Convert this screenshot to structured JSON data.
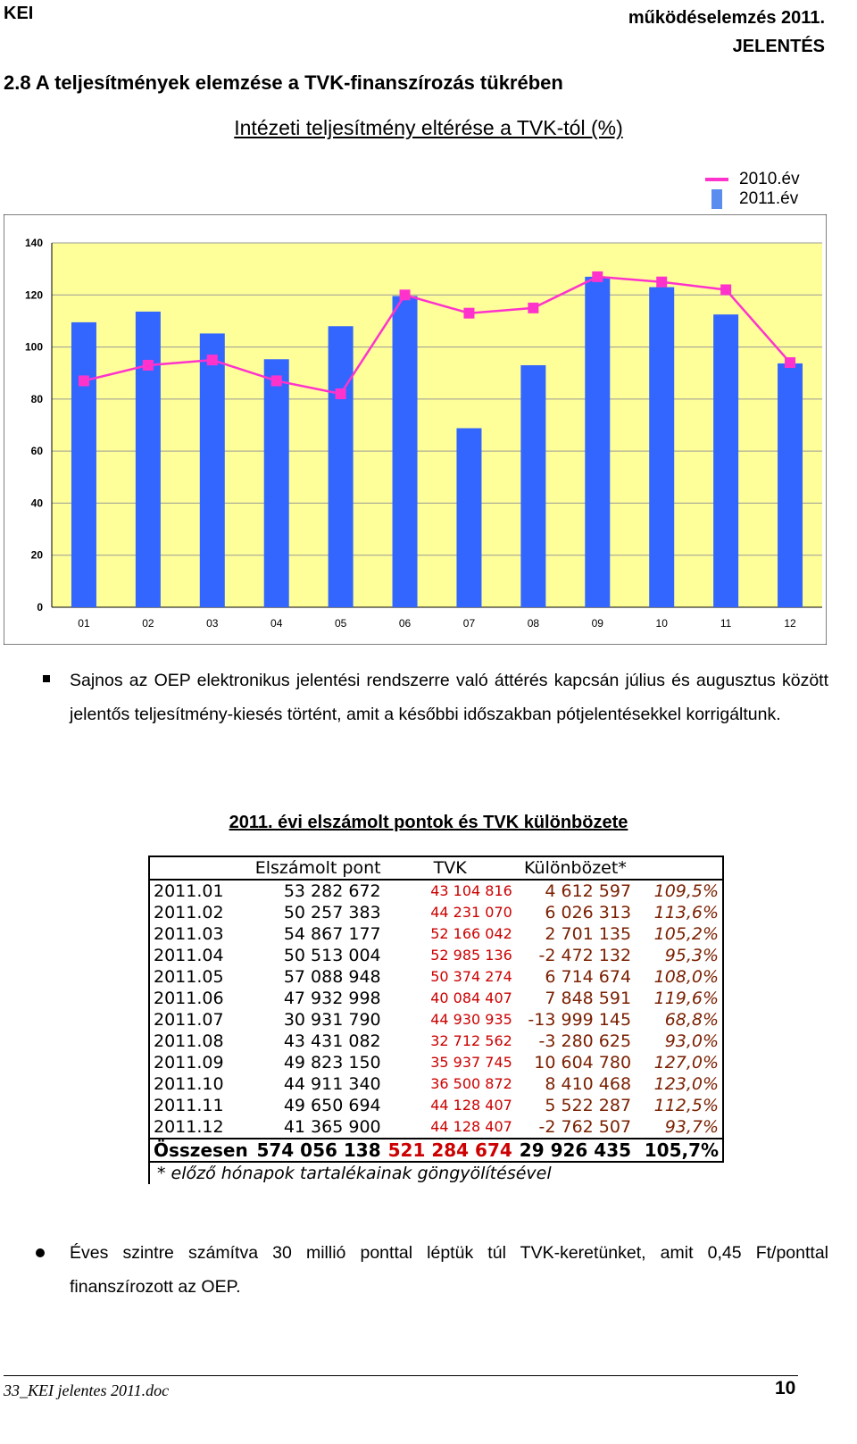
{
  "header": {
    "left": "KEI",
    "right_line1": "működéselemzés 2011.",
    "right_line2": "JELENTÉS"
  },
  "section_title": "2.8 A teljesítmények elemzése a TVK-finanszírozás tükrében",
  "chart_data": {
    "type": "bar",
    "title": "Intézeti teljesítmény eltérése a TVK-tól (%)",
    "categories": [
      "01",
      "02",
      "03",
      "04",
      "05",
      "06",
      "07",
      "08",
      "09",
      "10",
      "11",
      "12"
    ],
    "series": [
      {
        "name": "2010.év",
        "kind": "line",
        "color": "#ff33cc",
        "values": [
          87,
          93,
          95,
          87,
          82,
          120,
          113,
          115,
          127,
          125,
          122,
          94
        ]
      },
      {
        "name": "2011.év",
        "kind": "bar",
        "color": "#3366ff",
        "values": [
          109.5,
          113.6,
          105.2,
          95.3,
          108.0,
          119.6,
          68.8,
          93.0,
          127.0,
          123.0,
          112.5,
          93.7
        ]
      }
    ],
    "ylim": [
      0,
      140
    ],
    "yticks": [
      0,
      20,
      40,
      60,
      80,
      100,
      120,
      140
    ],
    "grid": true,
    "legend": "top-right",
    "plot_background": "#ffff99"
  },
  "paragraph1": "Sajnos az OEP elektronikus jelentési rendszerre való áttérés kapcsán július és augusztus között jelentős teljesítmény-kiesés történt, amit a későbbi időszakban pótjelentésekkel korrigáltunk.",
  "table": {
    "title": "2011. évi elszámolt pontok és TVK különbözete",
    "headers": [
      "",
      "Elszámolt pont",
      "TVK",
      "Különbözet*",
      ""
    ],
    "rows": [
      [
        "2011.01",
        "53 282 672",
        "43 104 816",
        "4 612 597",
        "109,5%"
      ],
      [
        "2011.02",
        "50 257 383",
        "44 231 070",
        "6 026 313",
        "113,6%"
      ],
      [
        "2011.03",
        "54 867 177",
        "52 166 042",
        "2 701 135",
        "105,2%"
      ],
      [
        "2011.04",
        "50 513 004",
        "52 985 136",
        "-2 472 132",
        "95,3%"
      ],
      [
        "2011.05",
        "57 088 948",
        "50 374 274",
        "6 714 674",
        "108,0%"
      ],
      [
        "2011.06",
        "47 932 998",
        "40 084 407",
        "7 848 591",
        "119,6%"
      ],
      [
        "2011.07",
        "30 931 790",
        "44 930 935",
        "-13 999 145",
        "68,8%"
      ],
      [
        "2011.08",
        "43 431 082",
        "32 712 562",
        "-3 280 625",
        "93,0%"
      ],
      [
        "2011.09",
        "49 823 150",
        "35 937 745",
        "10 604 780",
        "127,0%"
      ],
      [
        "2011.10",
        "44 911 340",
        "36 500 872",
        "8 410 468",
        "123,0%"
      ],
      [
        "2011.11",
        "49 650 694",
        "44 128 407",
        "5 522 287",
        "112,5%"
      ],
      [
        "2011.12",
        "41 365 900",
        "44 128 407",
        "-2 762 507",
        "93,7%"
      ]
    ],
    "total": [
      "Összesen",
      "574 056 138",
      "521 284 674",
      "29 926 435",
      "105,7%"
    ],
    "note": "* előző hónapok tartalékainak göngyölítésével"
  },
  "paragraph2": "Éves szintre számítva 30 millió ponttal léptük túl TVK-keretünket, amit 0,45 Ft/ponttal finanszírozott az OEP.",
  "footer": {
    "doc": "33_KEI jelentes 2011.doc",
    "page": "10"
  }
}
